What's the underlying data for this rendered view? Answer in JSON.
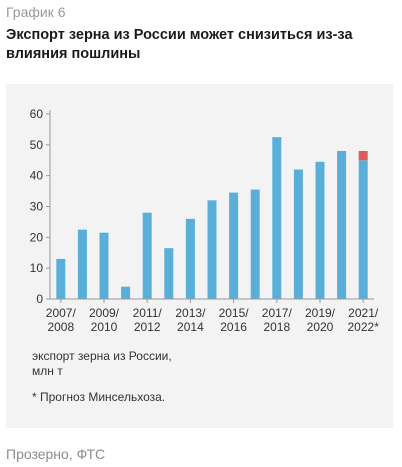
{
  "header": {
    "kicker": "График 6",
    "title": "Экспорт зерна из России может снизиться из-за влияния пошлины"
  },
  "footer": {
    "source": "Прозерно, ФТС"
  },
  "colors": {
    "bar": "#5aafd9",
    "forecast": "#e05a57",
    "axis": "#9a9a9a",
    "text": "#333333"
  },
  "chart_data": {
    "type": "bar",
    "title": "",
    "xlabel": "",
    "ylabel": "",
    "ylim": [
      0,
      60
    ],
    "yticks": [
      0,
      10,
      20,
      30,
      40,
      50,
      60
    ],
    "grid": false,
    "values": [
      13,
      22.5,
      21.5,
      4,
      28,
      16.5,
      26,
      32,
      34.5,
      35.5,
      52.5,
      42,
      44.5,
      48,
      45
    ],
    "forecast_extra": [
      0,
      0,
      0,
      0,
      0,
      0,
      0,
      0,
      0,
      0,
      0,
      0,
      0,
      0,
      3
    ],
    "xtick_labels": [
      {
        "top": "2007/",
        "bottom": "2008"
      },
      {
        "top": "2009/",
        "bottom": "2010"
      },
      {
        "top": "2011/",
        "bottom": "2012"
      },
      {
        "top": "2013/",
        "bottom": "2014"
      },
      {
        "top": "2015/",
        "bottom": "2016"
      },
      {
        "top": "2017/",
        "bottom": "2018"
      },
      {
        "top": "2019/",
        "bottom": "2020"
      },
      {
        "top": "2021/",
        "bottom": "2022*"
      }
    ],
    "legend": {
      "line1": "экспорт зерна из России,",
      "line2": "млн т"
    },
    "note": "* Прогноз Минсельхоза."
  }
}
